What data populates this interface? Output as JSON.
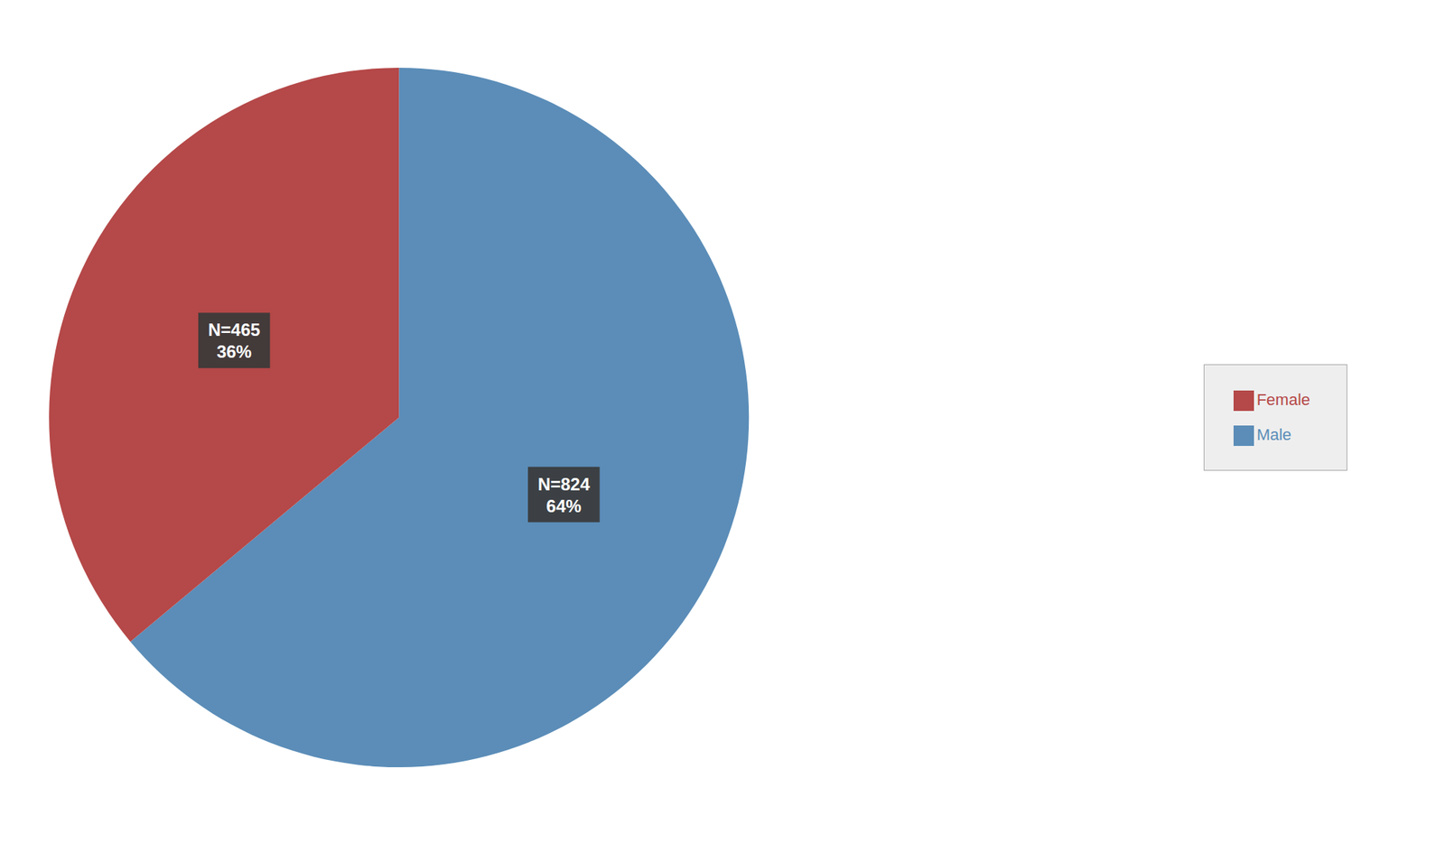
{
  "chart_data": {
    "type": "pie",
    "categories": [
      "Male",
      "Female"
    ],
    "values": [
      824,
      465
    ],
    "value_labels": [
      "N=824\n64%",
      "N=465\n36%"
    ],
    "colors": [
      "#5B8DB8",
      "#B54848"
    ],
    "data_labels": true,
    "legend": "right"
  }
}
